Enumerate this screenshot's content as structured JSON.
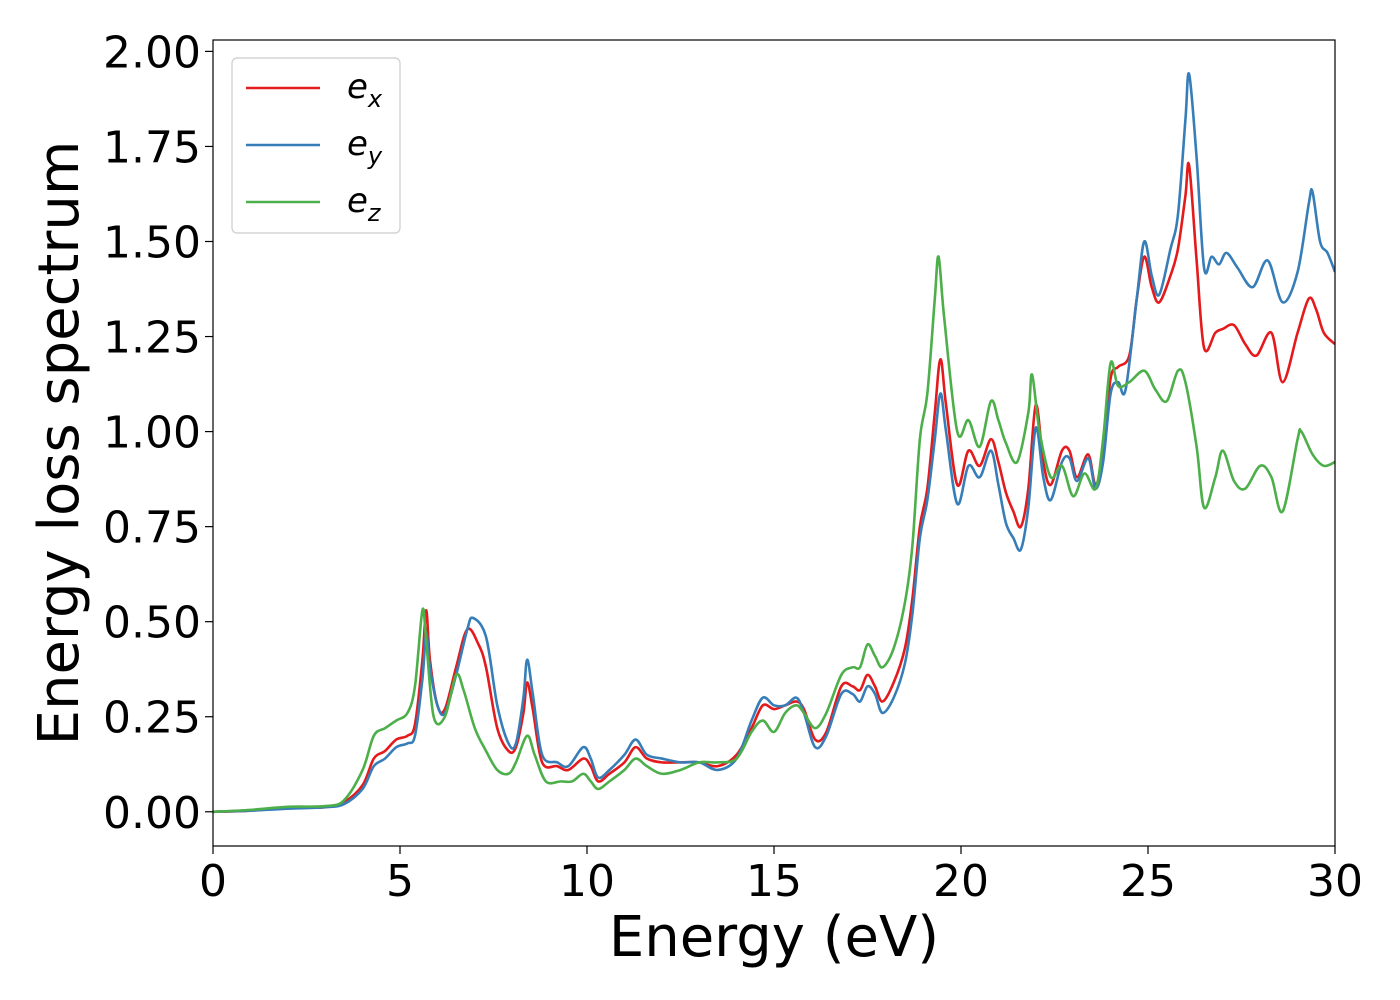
{
  "chart_data": {
    "type": "line",
    "title": "",
    "xlabel": "Energy (eV)",
    "ylabel": "Energy loss spectrum",
    "xlim": [
      0,
      30
    ],
    "ylim": [
      -0.09,
      2.03
    ],
    "xticks": [
      "0",
      "5",
      "10",
      "15",
      "20",
      "25",
      "30"
    ],
    "yticks": [
      "0.00",
      "0.25",
      "0.50",
      "0.75",
      "1.00",
      "1.25",
      "1.50",
      "1.75",
      "2.00"
    ],
    "grid": false,
    "legend_position": "top-left",
    "series": [
      {
        "name": "e_x",
        "base": "e",
        "sub": "x",
        "color": "#e41a1c",
        "points": [
          [
            0,
            0
          ],
          [
            1,
            0.003
          ],
          [
            2,
            0.01
          ],
          [
            3,
            0.012
          ],
          [
            3.5,
            0.025
          ],
          [
            4,
            0.07
          ],
          [
            4.3,
            0.14
          ],
          [
            4.6,
            0.16
          ],
          [
            4.9,
            0.19
          ],
          [
            5.2,
            0.2
          ],
          [
            5.4,
            0.23
          ],
          [
            5.6,
            0.4
          ],
          [
            5.7,
            0.53
          ],
          [
            5.8,
            0.4
          ],
          [
            6,
            0.28
          ],
          [
            6.2,
            0.27
          ],
          [
            6.5,
            0.38
          ],
          [
            6.8,
            0.48
          ],
          [
            7.1,
            0.44
          ],
          [
            7.3,
            0.38
          ],
          [
            7.6,
            0.22
          ],
          [
            7.9,
            0.16
          ],
          [
            8.1,
            0.17
          ],
          [
            8.3,
            0.26
          ],
          [
            8.4,
            0.34
          ],
          [
            8.55,
            0.27
          ],
          [
            8.8,
            0.13
          ],
          [
            9.2,
            0.12
          ],
          [
            9.5,
            0.11
          ],
          [
            9.9,
            0.14
          ],
          [
            10.1,
            0.12
          ],
          [
            10.3,
            0.08
          ],
          [
            10.6,
            0.1
          ],
          [
            11,
            0.13
          ],
          [
            11.3,
            0.17
          ],
          [
            11.6,
            0.14
          ],
          [
            12,
            0.13
          ],
          [
            12.5,
            0.13
          ],
          [
            13,
            0.13
          ],
          [
            13.5,
            0.12
          ],
          [
            14,
            0.15
          ],
          [
            14.4,
            0.22
          ],
          [
            14.7,
            0.28
          ],
          [
            15,
            0.27
          ],
          [
            15.3,
            0.28
          ],
          [
            15.6,
            0.29
          ],
          [
            15.8,
            0.27
          ],
          [
            16.1,
            0.19
          ],
          [
            16.4,
            0.21
          ],
          [
            16.8,
            0.33
          ],
          [
            17.1,
            0.33
          ],
          [
            17.3,
            0.32
          ],
          [
            17.5,
            0.36
          ],
          [
            17.7,
            0.33
          ],
          [
            17.9,
            0.29
          ],
          [
            18.2,
            0.34
          ],
          [
            18.5,
            0.43
          ],
          [
            18.7,
            0.56
          ],
          [
            18.9,
            0.75
          ],
          [
            19.1,
            0.85
          ],
          [
            19.3,
            1.05
          ],
          [
            19.45,
            1.19
          ],
          [
            19.6,
            1.07
          ],
          [
            19.9,
            0.86
          ],
          [
            20.2,
            0.95
          ],
          [
            20.5,
            0.91
          ],
          [
            20.8,
            0.98
          ],
          [
            21,
            0.92
          ],
          [
            21.2,
            0.84
          ],
          [
            21.4,
            0.79
          ],
          [
            21.6,
            0.75
          ],
          [
            21.8,
            0.85
          ],
          [
            22,
            1.07
          ],
          [
            22.2,
            0.92
          ],
          [
            22.4,
            0.86
          ],
          [
            22.7,
            0.95
          ],
          [
            22.9,
            0.95
          ],
          [
            23.1,
            0.88
          ],
          [
            23.4,
            0.94
          ],
          [
            23.6,
            0.86
          ],
          [
            23.8,
            0.95
          ],
          [
            24,
            1.14
          ],
          [
            24.2,
            1.17
          ],
          [
            24.5,
            1.2
          ],
          [
            24.7,
            1.35
          ],
          [
            24.9,
            1.46
          ],
          [
            25.1,
            1.38
          ],
          [
            25.3,
            1.34
          ],
          [
            25.6,
            1.41
          ],
          [
            25.8,
            1.48
          ],
          [
            26,
            1.62
          ],
          [
            26.1,
            1.7
          ],
          [
            26.3,
            1.45
          ],
          [
            26.5,
            1.22
          ],
          [
            26.8,
            1.26
          ],
          [
            27,
            1.27
          ],
          [
            27.3,
            1.28
          ],
          [
            27.6,
            1.23
          ],
          [
            27.9,
            1.2
          ],
          [
            28.3,
            1.26
          ],
          [
            28.6,
            1.13
          ],
          [
            29,
            1.26
          ],
          [
            29.3,
            1.35
          ],
          [
            29.5,
            1.32
          ],
          [
            29.7,
            1.26
          ],
          [
            30,
            1.23
          ]
        ]
      },
      {
        "name": "e_y",
        "base": "e",
        "sub": "y",
        "color": "#377eb8",
        "points": [
          [
            0,
            0
          ],
          [
            1,
            0.003
          ],
          [
            2,
            0.008
          ],
          [
            3,
            0.012
          ],
          [
            3.5,
            0.02
          ],
          [
            4,
            0.06
          ],
          [
            4.3,
            0.12
          ],
          [
            4.6,
            0.14
          ],
          [
            4.9,
            0.17
          ],
          [
            5.2,
            0.18
          ],
          [
            5.4,
            0.2
          ],
          [
            5.6,
            0.35
          ],
          [
            5.7,
            0.47
          ],
          [
            5.8,
            0.38
          ],
          [
            6,
            0.28
          ],
          [
            6.2,
            0.26
          ],
          [
            6.5,
            0.36
          ],
          [
            6.8,
            0.48
          ],
          [
            6.95,
            0.51
          ],
          [
            7.3,
            0.46
          ],
          [
            7.6,
            0.28
          ],
          [
            7.9,
            0.18
          ],
          [
            8.1,
            0.18
          ],
          [
            8.3,
            0.3
          ],
          [
            8.4,
            0.4
          ],
          [
            8.55,
            0.31
          ],
          [
            8.8,
            0.15
          ],
          [
            9.2,
            0.13
          ],
          [
            9.5,
            0.12
          ],
          [
            9.9,
            0.17
          ],
          [
            10.1,
            0.14
          ],
          [
            10.3,
            0.09
          ],
          [
            10.6,
            0.11
          ],
          [
            11,
            0.15
          ],
          [
            11.3,
            0.19
          ],
          [
            11.6,
            0.15
          ],
          [
            12,
            0.14
          ],
          [
            12.5,
            0.13
          ],
          [
            13,
            0.13
          ],
          [
            13.5,
            0.11
          ],
          [
            14,
            0.14
          ],
          [
            14.4,
            0.24
          ],
          [
            14.7,
            0.3
          ],
          [
            15,
            0.28
          ],
          [
            15.3,
            0.28
          ],
          [
            15.6,
            0.3
          ],
          [
            15.8,
            0.26
          ],
          [
            16.1,
            0.17
          ],
          [
            16.4,
            0.2
          ],
          [
            16.8,
            0.31
          ],
          [
            17.1,
            0.31
          ],
          [
            17.3,
            0.29
          ],
          [
            17.5,
            0.33
          ],
          [
            17.7,
            0.31
          ],
          [
            17.9,
            0.26
          ],
          [
            18.2,
            0.3
          ],
          [
            18.5,
            0.39
          ],
          [
            18.7,
            0.52
          ],
          [
            18.9,
            0.72
          ],
          [
            19.1,
            0.82
          ],
          [
            19.3,
            0.98
          ],
          [
            19.45,
            1.1
          ],
          [
            19.6,
            1.0
          ],
          [
            19.9,
            0.81
          ],
          [
            20.2,
            0.91
          ],
          [
            20.5,
            0.88
          ],
          [
            20.8,
            0.95
          ],
          [
            21,
            0.86
          ],
          [
            21.2,
            0.76
          ],
          [
            21.4,
            0.72
          ],
          [
            21.6,
            0.69
          ],
          [
            21.8,
            0.8
          ],
          [
            22,
            1.01
          ],
          [
            22.2,
            0.88
          ],
          [
            22.4,
            0.82
          ],
          [
            22.7,
            0.92
          ],
          [
            22.9,
            0.93
          ],
          [
            23.1,
            0.87
          ],
          [
            23.4,
            0.93
          ],
          [
            23.6,
            0.85
          ],
          [
            23.8,
            0.92
          ],
          [
            24,
            1.1
          ],
          [
            24.2,
            1.13
          ],
          [
            24.4,
            1.11
          ],
          [
            24.7,
            1.35
          ],
          [
            24.9,
            1.5
          ],
          [
            25.1,
            1.41
          ],
          [
            25.3,
            1.36
          ],
          [
            25.6,
            1.48
          ],
          [
            25.8,
            1.57
          ],
          [
            26,
            1.82
          ],
          [
            26.1,
            1.94
          ],
          [
            26.3,
            1.72
          ],
          [
            26.5,
            1.43
          ],
          [
            26.7,
            1.46
          ],
          [
            26.9,
            1.44
          ],
          [
            27.1,
            1.47
          ],
          [
            27.4,
            1.43
          ],
          [
            27.8,
            1.38
          ],
          [
            28.2,
            1.45
          ],
          [
            28.6,
            1.34
          ],
          [
            29,
            1.42
          ],
          [
            29.3,
            1.6
          ],
          [
            29.4,
            1.63
          ],
          [
            29.6,
            1.5
          ],
          [
            29.8,
            1.47
          ],
          [
            30,
            1.42
          ]
        ]
      },
      {
        "name": "e_z",
        "base": "e",
        "sub": "z",
        "color": "#4daf4a",
        "points": [
          [
            0,
            0
          ],
          [
            1,
            0.005
          ],
          [
            2,
            0.013
          ],
          [
            3,
            0.015
          ],
          [
            3.5,
            0.03
          ],
          [
            4,
            0.11
          ],
          [
            4.3,
            0.2
          ],
          [
            4.6,
            0.22
          ],
          [
            4.9,
            0.24
          ],
          [
            5.2,
            0.26
          ],
          [
            5.4,
            0.33
          ],
          [
            5.6,
            0.53
          ],
          [
            5.7,
            0.45
          ],
          [
            5.9,
            0.25
          ],
          [
            6.2,
            0.25
          ],
          [
            6.5,
            0.36
          ],
          [
            6.7,
            0.32
          ],
          [
            7,
            0.22
          ],
          [
            7.3,
            0.16
          ],
          [
            7.6,
            0.11
          ],
          [
            7.9,
            0.1
          ],
          [
            8.1,
            0.13
          ],
          [
            8.4,
            0.2
          ],
          [
            8.6,
            0.15
          ],
          [
            8.9,
            0.08
          ],
          [
            9.3,
            0.08
          ],
          [
            9.6,
            0.08
          ],
          [
            9.9,
            0.1
          ],
          [
            10.1,
            0.08
          ],
          [
            10.3,
            0.06
          ],
          [
            10.6,
            0.08
          ],
          [
            11,
            0.11
          ],
          [
            11.3,
            0.14
          ],
          [
            11.6,
            0.12
          ],
          [
            12,
            0.1
          ],
          [
            12.5,
            0.11
          ],
          [
            13,
            0.13
          ],
          [
            13.5,
            0.13
          ],
          [
            14,
            0.14
          ],
          [
            14.4,
            0.21
          ],
          [
            14.7,
            0.24
          ],
          [
            15,
            0.21
          ],
          [
            15.3,
            0.26
          ],
          [
            15.6,
            0.28
          ],
          [
            15.8,
            0.26
          ],
          [
            16.1,
            0.22
          ],
          [
            16.4,
            0.26
          ],
          [
            16.8,
            0.36
          ],
          [
            17.1,
            0.38
          ],
          [
            17.3,
            0.38
          ],
          [
            17.5,
            0.44
          ],
          [
            17.7,
            0.41
          ],
          [
            17.9,
            0.38
          ],
          [
            18.2,
            0.43
          ],
          [
            18.5,
            0.55
          ],
          [
            18.7,
            0.7
          ],
          [
            18.9,
            0.98
          ],
          [
            19.1,
            1.1
          ],
          [
            19.3,
            1.35
          ],
          [
            19.4,
            1.46
          ],
          [
            19.55,
            1.3
          ],
          [
            19.9,
            1.0
          ],
          [
            20.2,
            1.03
          ],
          [
            20.5,
            0.96
          ],
          [
            20.8,
            1.08
          ],
          [
            21,
            1.03
          ],
          [
            21.2,
            0.97
          ],
          [
            21.5,
            0.92
          ],
          [
            21.8,
            1.05
          ],
          [
            21.9,
            1.15
          ],
          [
            22.1,
            1.0
          ],
          [
            22.4,
            0.88
          ],
          [
            22.7,
            0.91
          ],
          [
            23,
            0.83
          ],
          [
            23.3,
            0.89
          ],
          [
            23.6,
            0.85
          ],
          [
            23.8,
            0.98
          ],
          [
            24,
            1.18
          ],
          [
            24.2,
            1.12
          ],
          [
            24.5,
            1.13
          ],
          [
            24.9,
            1.16
          ],
          [
            25.2,
            1.11
          ],
          [
            25.5,
            1.08
          ],
          [
            25.8,
            1.16
          ],
          [
            26,
            1.13
          ],
          [
            26.3,
            0.96
          ],
          [
            26.5,
            0.8
          ],
          [
            26.8,
            0.88
          ],
          [
            27,
            0.95
          ],
          [
            27.3,
            0.87
          ],
          [
            27.6,
            0.85
          ],
          [
            28,
            0.91
          ],
          [
            28.3,
            0.88
          ],
          [
            28.6,
            0.79
          ],
          [
            29,
            0.98
          ],
          [
            29.1,
            1.0
          ],
          [
            29.4,
            0.94
          ],
          [
            29.7,
            0.91
          ],
          [
            30,
            0.92
          ]
        ]
      }
    ]
  }
}
